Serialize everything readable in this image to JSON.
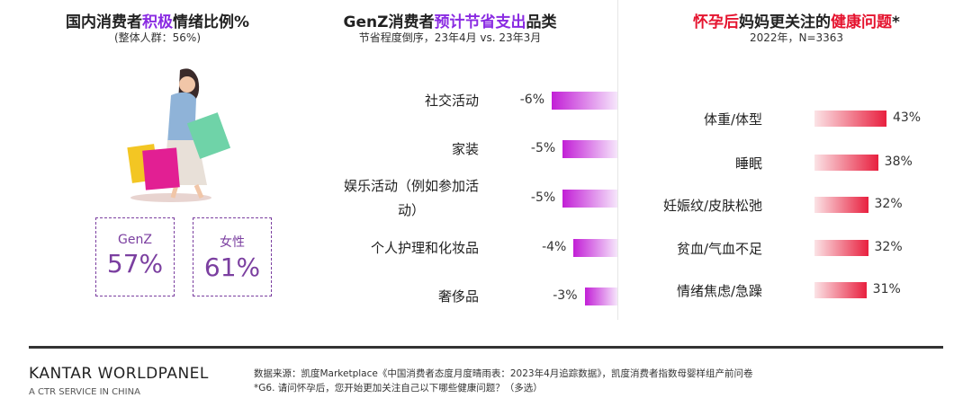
{
  "left_panel": {
    "title_parts": [
      {
        "text": "国内消费者",
        "color": "#222222"
      },
      {
        "text": "积极",
        "color": "#8a2be2"
      },
      {
        "text": "情绪比例%",
        "color": "#222222"
      }
    ],
    "subtitle": "(整体人群：56%)",
    "stats": [
      {
        "label": "GenZ",
        "value": "57%"
      },
      {
        "label": "女性",
        "value": "61%"
      }
    ]
  },
  "chart_data": [
    {
      "type": "bar",
      "orientation": "horizontal",
      "title_parts": [
        {
          "text": "GenZ消费者",
          "color": "#222222"
        },
        {
          "text": "预计节省支出",
          "color": "#8a2be2"
        },
        {
          "text": "品类",
          "color": "#222222"
        }
      ],
      "subtitle": "节省程度倒序，23年4月 vs. 23年3月",
      "categories": [
        "社交活动",
        "家装",
        "娱乐活动（例如参加活动）",
        "个人护理和化妆品",
        "奢侈品"
      ],
      "values": [
        -6,
        -5,
        -5,
        -4,
        -3
      ],
      "value_labels": [
        "-6%",
        "-5%",
        "-5%",
        "-4%",
        "-3%"
      ],
      "xlim": [
        -6,
        0
      ],
      "color": "#c21fd6"
    },
    {
      "type": "bar",
      "orientation": "horizontal",
      "title_parts": [
        {
          "text": "怀孕后",
          "color": "#e5142f"
        },
        {
          "text": "妈妈更关注的",
          "color": "#222222"
        },
        {
          "text": "健康问题",
          "color": "#e5142f"
        },
        {
          "text": "*",
          "color": "#222222"
        }
      ],
      "subtitle": "2022年，N=3363",
      "categories": [
        "体重/体型",
        "睡眠",
        "妊娠纹/皮肤松弛",
        "贫血/气血不足",
        "情绪焦虑/急躁"
      ],
      "values": [
        43,
        38,
        32,
        32,
        31
      ],
      "value_labels": [
        "43%",
        "38%",
        "32%",
        "32%",
        "31%"
      ],
      "xlim": [
        0,
        50
      ],
      "color": "#e8203f"
    }
  ],
  "footer": {
    "brand": "KANTAR WORLDPANEL",
    "brand_sub": "A CTR SERVICE IN CHINA",
    "source": "数据来源：凯度Marketplace《中国消费者态度月度晴雨表：2023年4月追踪数据》，凯度消费者指数母婴样组产前问卷",
    "note": "*G6. 请问怀孕后，您开始更加关注自己以下哪些健康问题？（多选）"
  }
}
